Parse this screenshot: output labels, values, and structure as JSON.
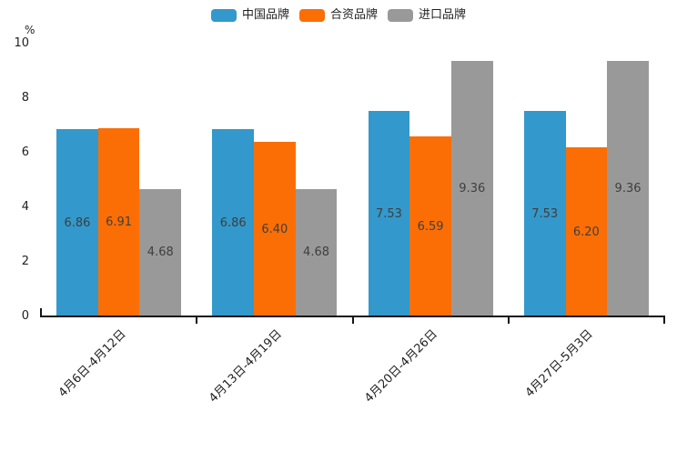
{
  "chart_data": {
    "type": "bar",
    "title": "",
    "unit_label": "%",
    "categories": [
      "4月6日-4月12日",
      "4月13日-4月19日",
      "4月20日-4月26日",
      "4月27日-5月3日"
    ],
    "series": [
      {
        "name": "中国品牌",
        "color": "#3398cb",
        "values": [
          6.86,
          6.86,
          7.53,
          7.53
        ]
      },
      {
        "name": "合资品牌",
        "color": "#fa6e05",
        "values": [
          6.91,
          6.4,
          6.59,
          6.2
        ]
      },
      {
        "name": "进口品牌",
        "color": "#999999",
        "values": [
          4.68,
          4.68,
          9.36,
          9.36
        ]
      }
    ],
    "ylim": [
      0,
      10
    ],
    "yticks": [
      0,
      2,
      4,
      6,
      8,
      10
    ],
    "grid": false,
    "legend_position": "top-center",
    "value_label_position": "inside-center",
    "value_label_decimals": 2,
    "x_label_rotation_deg": 45,
    "bar_gap_within_group": 0
  }
}
